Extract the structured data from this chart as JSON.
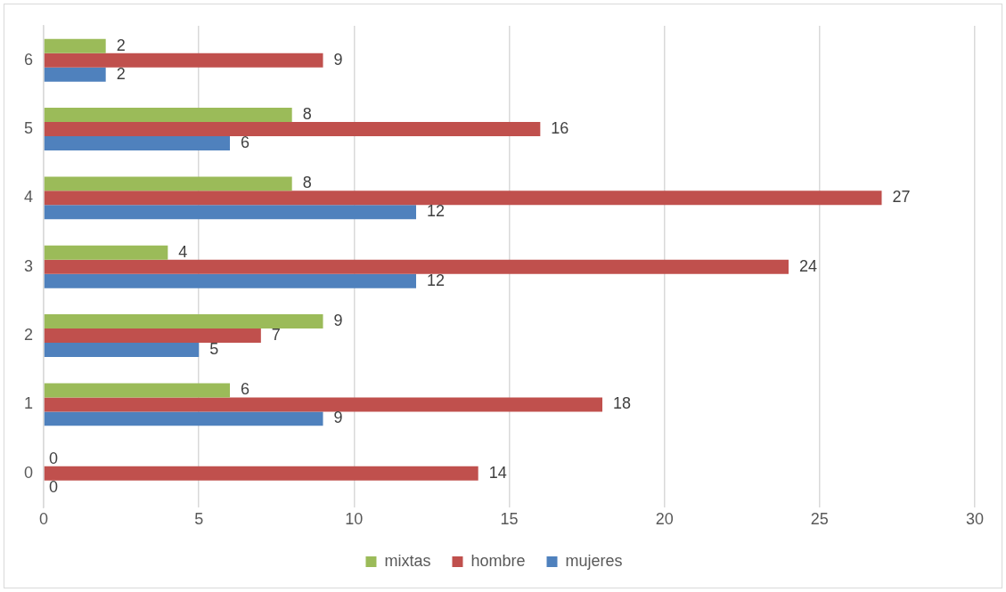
{
  "chart_data": {
    "type": "bar",
    "orientation": "horizontal",
    "categories": [
      "6",
      "5",
      "4",
      "3",
      "2",
      "1",
      "0"
    ],
    "series": [
      {
        "name": "mixtas",
        "color": "#9bbb59",
        "values": [
          2,
          8,
          8,
          4,
          9,
          6,
          0
        ]
      },
      {
        "name": "hombre",
        "color": "#c0504d",
        "values": [
          9,
          16,
          27,
          24,
          7,
          18,
          14
        ]
      },
      {
        "name": "mujeres",
        "color": "#4f81bd",
        "values": [
          2,
          6,
          12,
          12,
          5,
          9,
          0
        ]
      }
    ],
    "xlim": [
      0,
      30
    ],
    "xticks": [
      0,
      5,
      10,
      15,
      20,
      25,
      30
    ],
    "grid": "x",
    "legend": "bottom",
    "data_labels": true
  }
}
